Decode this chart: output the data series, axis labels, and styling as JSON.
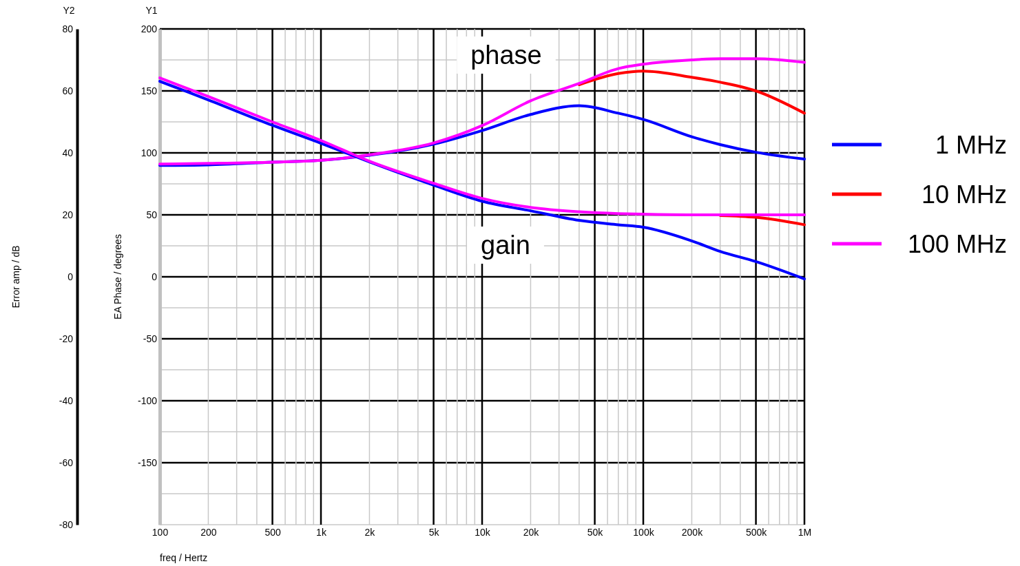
{
  "chart_data": {
    "type": "line",
    "xlabel": "freq / Hertz",
    "ylabel": "EA Phase / degrees",
    "y2label": "Error amp / dB",
    "annotations": [
      "Y2",
      "Y1",
      "phase",
      "gain"
    ],
    "log": "x",
    "grid": true,
    "legend": "right",
    "line_style": "solid",
    "marker": "none",
    "x": [
      100,
      200,
      500,
      1000,
      2000,
      5000,
      10000,
      20000,
      40000,
      70000,
      100000,
      200000,
      300000,
      500000,
      1000000
    ],
    "xlim": [
      100,
      1000000
    ],
    "xticks": [
      100,
      200,
      {
        "value": 300,
        "label": null
      },
      {
        "value": 400,
        "label": null
      },
      500,
      {
        "value": 600,
        "label": null
      },
      {
        "value": 700,
        "label": null
      },
      {
        "value": 800,
        "label": null
      },
      {
        "value": 900,
        "label": null
      },
      {
        "value": 1000,
        "label": "1k"
      },
      {
        "value": 2000,
        "label": "2k"
      },
      {
        "value": 3000,
        "label": null
      },
      {
        "value": 4000,
        "label": null
      },
      {
        "value": 5000,
        "label": "5k"
      },
      {
        "value": 6000,
        "label": null
      },
      {
        "value": 7000,
        "label": null
      },
      {
        "value": 8000,
        "label": null
      },
      {
        "value": 9000,
        "label": null
      },
      {
        "value": 10000,
        "label": "10k"
      },
      {
        "value": 20000,
        "label": "20k"
      },
      {
        "value": 30000,
        "label": null
      },
      {
        "value": 40000,
        "label": null
      },
      {
        "value": 50000,
        "label": "50k"
      },
      {
        "value": 60000,
        "label": null
      },
      {
        "value": 70000,
        "label": null
      },
      {
        "value": 80000,
        "label": null
      },
      {
        "value": 90000,
        "label": null
      },
      {
        "value": 100000,
        "label": "100k"
      },
      {
        "value": 200000,
        "label": "200k"
      },
      {
        "value": 300000,
        "label": null
      },
      {
        "value": 400000,
        "label": null
      },
      {
        "value": 500000,
        "label": "500k"
      },
      {
        "value": 600000,
        "label": null
      },
      {
        "value": 700000,
        "label": null
      },
      {
        "value": 800000,
        "label": null
      },
      {
        "value": 900000,
        "label": null
      },
      {
        "value": 1000000,
        "label": "1M"
      }
    ],
    "ylim": [
      -200,
      200
    ],
    "yticks": [
      {
        "value": -200,
        "label": null
      },
      {
        "value": -175,
        "label": null
      },
      -150,
      {
        "value": -125,
        "label": null
      },
      -100,
      {
        "value": -75,
        "label": null
      },
      -50,
      {
        "value": -25,
        "label": null
      },
      0,
      {
        "value": 25,
        "label": null
      },
      50,
      {
        "value": 75,
        "label": null
      },
      100,
      {
        "value": 125,
        "label": null
      },
      150,
      {
        "value": 175,
        "label": null
      },
      200
    ],
    "y2lim": [
      -80,
      80
    ],
    "y2ticks": [
      -80,
      -60,
      -40,
      -20,
      0,
      20,
      40,
      60,
      80
    ],
    "series": [
      {
        "name": "1 MHz",
        "color": "#0000ff",
        "values": [
          89.8,
          90.3,
          92.5,
          94,
          98,
          107,
          118,
          131,
          138,
          132,
          127,
          113,
          106.7,
          100.5,
          95
        ]
      },
      {
        "name": "10 MHz",
        "color": "#ff0000",
        "values": [
          null,
          null,
          null,
          null,
          null,
          null,
          null,
          null,
          155,
          164,
          166,
          161,
          157,
          150,
          132
        ]
      },
      {
        "name": "100 MHz",
        "color": "#ff00ff",
        "values": [
          91,
          91.5,
          92.5,
          94,
          98.5,
          108,
          122,
          142,
          156,
          168,
          171.5,
          175,
          176,
          176,
          173
        ]
      },
      {
        "color": "#0000ff",
        "axis": "y2",
        "values": [
          63.1,
          57.1,
          48.9,
          43.1,
          37.1,
          29.6,
          24.4,
          21.3,
          18.2,
          16.8,
          16,
          11.6,
          8.2,
          4.9,
          -0.7
        ]
      },
      {
        "color": "#ff0000",
        "axis": "y2",
        "values": [
          null,
          null,
          null,
          null,
          null,
          null,
          null,
          null,
          null,
          null,
          null,
          null,
          19.8,
          19.2,
          16.8
        ]
      },
      {
        "color": "#ff00ff",
        "axis": "y2",
        "values": [
          64.2,
          58.2,
          50,
          44,
          37.3,
          30.2,
          25.3,
          22.4,
          21,
          20.4,
          20.2,
          20,
          20,
          20,
          20
        ]
      }
    ]
  }
}
